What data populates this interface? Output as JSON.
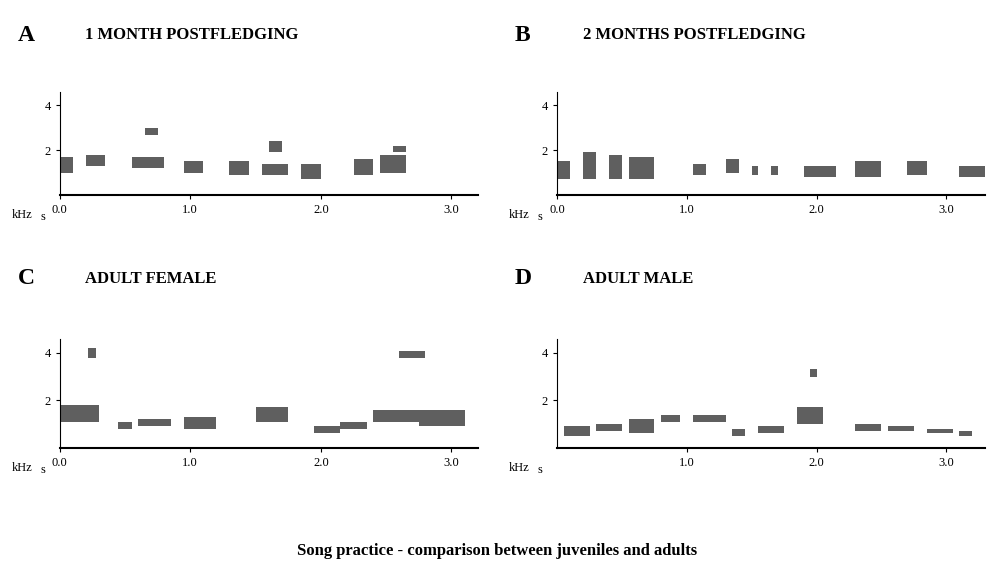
{
  "caption": "Song practice - comparison between juveniles and adults",
  "chart_data": [
    {
      "type": "spectrogram",
      "panel": "A",
      "title": "1 MONTH POSTFLEDGING",
      "xlabel": "s",
      "ylabel": "kHz",
      "color": "#2a2a2a",
      "xlim": [
        0,
        3.2
      ],
      "ylim": [
        0,
        4.6
      ],
      "xticks": [
        {
          "value": 0,
          "label": "0.0"
        },
        {
          "value": 1,
          "label": "1.0"
        },
        {
          "value": 2,
          "label": "2.0"
        },
        {
          "value": 3,
          "label": "3.0"
        }
      ],
      "yticks": [
        2,
        4
      ],
      "syllables": [
        {
          "start": 0.0,
          "end": 0.1,
          "low": 1.0,
          "high": 1.7
        },
        {
          "start": 0.2,
          "end": 0.35,
          "low": 1.3,
          "high": 1.8
        },
        {
          "start": 0.55,
          "end": 0.8,
          "low": 1.2,
          "high": 1.7
        },
        {
          "start": 0.65,
          "end": 0.75,
          "low": 2.7,
          "high": 3.0
        },
        {
          "start": 0.95,
          "end": 1.1,
          "low": 1.0,
          "high": 1.5
        },
        {
          "start": 1.3,
          "end": 1.45,
          "low": 0.9,
          "high": 1.5
        },
        {
          "start": 1.55,
          "end": 1.75,
          "low": 0.9,
          "high": 1.4
        },
        {
          "start": 1.6,
          "end": 1.7,
          "low": 1.9,
          "high": 2.4
        },
        {
          "start": 1.85,
          "end": 2.0,
          "low": 0.7,
          "high": 1.4
        },
        {
          "start": 2.25,
          "end": 2.4,
          "low": 0.9,
          "high": 1.6
        },
        {
          "start": 2.45,
          "end": 2.65,
          "low": 1.0,
          "high": 1.8
        },
        {
          "start": 2.55,
          "end": 2.65,
          "low": 1.9,
          "high": 2.2
        }
      ]
    },
    {
      "type": "spectrogram",
      "panel": "B",
      "title": "2 MONTHS POSTFLEDGING",
      "xlabel": "s",
      "ylabel": "kHz",
      "color": "#2a2a2a",
      "xlim": [
        0,
        3.3
      ],
      "ylim": [
        0,
        4.6
      ],
      "xticks": [
        {
          "value": 0,
          "label": "0.0"
        },
        {
          "value": 1,
          "label": "1.0"
        },
        {
          "value": 2,
          "label": "2.0"
        },
        {
          "value": 3,
          "label": "3.0"
        }
      ],
      "yticks": [
        2,
        4
      ],
      "syllables": [
        {
          "start": 0.0,
          "end": 0.1,
          "low": 0.7,
          "high": 1.5
        },
        {
          "start": 0.2,
          "end": 0.3,
          "low": 0.7,
          "high": 1.9
        },
        {
          "start": 0.4,
          "end": 0.5,
          "low": 0.7,
          "high": 1.8
        },
        {
          "start": 0.55,
          "end": 0.75,
          "low": 0.7,
          "high": 1.7
        },
        {
          "start": 1.05,
          "end": 1.15,
          "low": 0.9,
          "high": 1.4
        },
        {
          "start": 1.3,
          "end": 1.4,
          "low": 1.0,
          "high": 1.6
        },
        {
          "start": 1.5,
          "end": 1.55,
          "low": 0.9,
          "high": 1.3
        },
        {
          "start": 1.65,
          "end": 1.7,
          "low": 0.9,
          "high": 1.3
        },
        {
          "start": 1.9,
          "end": 2.15,
          "low": 0.8,
          "high": 1.3
        },
        {
          "start": 2.3,
          "end": 2.5,
          "low": 0.8,
          "high": 1.5
        },
        {
          "start": 2.7,
          "end": 2.85,
          "low": 0.9,
          "high": 1.5
        },
        {
          "start": 3.1,
          "end": 3.3,
          "low": 0.8,
          "high": 1.3
        }
      ]
    },
    {
      "type": "spectrogram",
      "panel": "C",
      "title": "ADULT FEMALE",
      "xlabel": "s",
      "ylabel": "kHz",
      "color": "#2a2a2a",
      "xlim": [
        0,
        3.2
      ],
      "ylim": [
        0,
        4.6
      ],
      "xticks": [
        {
          "value": 0,
          "label": "0.0"
        },
        {
          "value": 1,
          "label": "1.0"
        },
        {
          "value": 2,
          "label": "2.0"
        },
        {
          "value": 3,
          "label": "3.0"
        }
      ],
      "yticks": [
        2,
        4
      ],
      "syllables": [
        {
          "start": 0.0,
          "end": 0.3,
          "low": 1.1,
          "high": 1.8
        },
        {
          "start": 0.22,
          "end": 0.28,
          "low": 3.8,
          "high": 4.2
        },
        {
          "start": 0.45,
          "end": 0.55,
          "low": 0.8,
          "high": 1.1
        },
        {
          "start": 0.6,
          "end": 0.85,
          "low": 0.9,
          "high": 1.2
        },
        {
          "start": 0.95,
          "end": 1.2,
          "low": 0.8,
          "high": 1.3
        },
        {
          "start": 1.5,
          "end": 1.75,
          "low": 1.1,
          "high": 1.7
        },
        {
          "start": 1.95,
          "end": 2.15,
          "low": 0.6,
          "high": 0.9
        },
        {
          "start": 2.15,
          "end": 2.35,
          "low": 0.8,
          "high": 1.1
        },
        {
          "start": 2.4,
          "end": 2.75,
          "low": 1.1,
          "high": 1.6
        },
        {
          "start": 2.75,
          "end": 3.1,
          "low": 0.9,
          "high": 1.6
        },
        {
          "start": 2.6,
          "end": 2.8,
          "low": 3.8,
          "high": 4.1
        }
      ]
    },
    {
      "type": "spectrogram",
      "panel": "D",
      "title": "ADULT MALE",
      "xlabel": "s",
      "ylabel": "kHz",
      "color": "#2a2a2a",
      "xlim": [
        0,
        3.3
      ],
      "ylim": [
        0,
        4.6
      ],
      "xticks": [
        {
          "value": 1,
          "label": "1.0"
        },
        {
          "value": 2,
          "label": "2.0"
        },
        {
          "value": 3,
          "label": "3.0"
        }
      ],
      "yticks": [
        2,
        4
      ],
      "syllables": [
        {
          "start": 0.05,
          "end": 0.25,
          "low": 0.5,
          "high": 0.9
        },
        {
          "start": 0.3,
          "end": 0.5,
          "low": 0.7,
          "high": 1.0
        },
        {
          "start": 0.55,
          "end": 0.75,
          "low": 0.6,
          "high": 1.2
        },
        {
          "start": 0.8,
          "end": 0.95,
          "low": 1.1,
          "high": 1.4
        },
        {
          "start": 1.05,
          "end": 1.3,
          "low": 1.1,
          "high": 1.4
        },
        {
          "start": 1.35,
          "end": 1.45,
          "low": 0.5,
          "high": 0.8
        },
        {
          "start": 1.55,
          "end": 1.75,
          "low": 0.6,
          "high": 0.9
        },
        {
          "start": 1.85,
          "end": 2.05,
          "low": 1.0,
          "high": 1.7
        },
        {
          "start": 1.95,
          "end": 2.0,
          "low": 3.0,
          "high": 3.3
        },
        {
          "start": 2.3,
          "end": 2.5,
          "low": 0.7,
          "high": 1.0
        },
        {
          "start": 2.55,
          "end": 2.75,
          "low": 0.7,
          "high": 0.9
        },
        {
          "start": 2.85,
          "end": 3.05,
          "low": 0.6,
          "high": 0.8
        },
        {
          "start": 3.1,
          "end": 3.2,
          "low": 0.5,
          "high": 0.7
        }
      ]
    }
  ]
}
